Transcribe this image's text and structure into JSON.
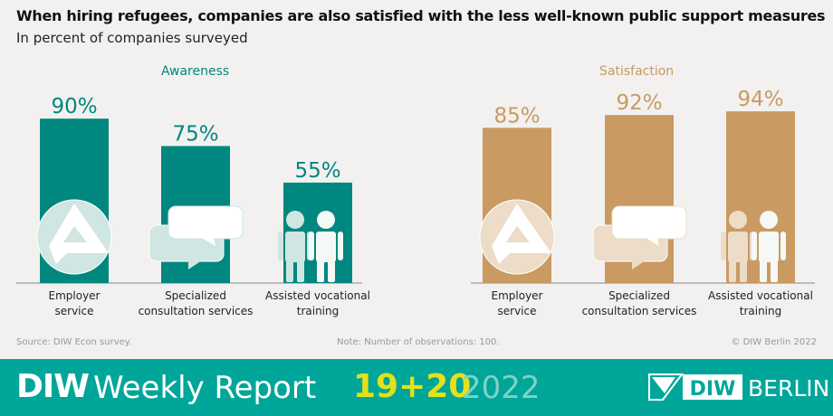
{
  "title": "When hiring refugees, companies are also satisfied with the less well-known public support measures",
  "subtitle": "In percent of companies surveyed",
  "footer": {
    "source": "Source: DIW Econ survey.",
    "note": "Note: Number of observations: 100.",
    "copyright": "© DIW Berlin 2022"
  },
  "banner": {
    "brand": "DIW",
    "name": "Weekly Report",
    "issue": "19+20",
    "year": "2022",
    "logo_text": "DIW",
    "berlin": "BERLIN"
  },
  "colors": {
    "awareness": "#00877f",
    "satisfaction": "#c99a62",
    "banner": "#00a699",
    "issue": "#e4e11b"
  },
  "chart_data": [
    {
      "type": "bar",
      "title": "Awareness",
      "color": "#00877f",
      "categories": [
        "Employer service",
        "Specialized consultation services",
        "Assisted vocational training"
      ],
      "values": [
        90,
        75,
        55
      ],
      "labels": [
        "90%",
        "75%",
        "55%"
      ],
      "icons": [
        "employment-agency-logo-icon",
        "speech-bubbles-icon",
        "people-icon"
      ],
      "ylim": [
        0,
        100
      ]
    },
    {
      "type": "bar",
      "title": "Satisfaction",
      "color": "#c99a62",
      "categories": [
        "Employer service",
        "Specialized consultation services",
        "Assisted vocational training"
      ],
      "values": [
        85,
        92,
        94
      ],
      "labels": [
        "85%",
        "92%",
        "94%"
      ],
      "icons": [
        "employment-agency-logo-icon",
        "speech-bubbles-icon",
        "people-icon"
      ],
      "ylim": [
        0,
        100
      ]
    }
  ]
}
